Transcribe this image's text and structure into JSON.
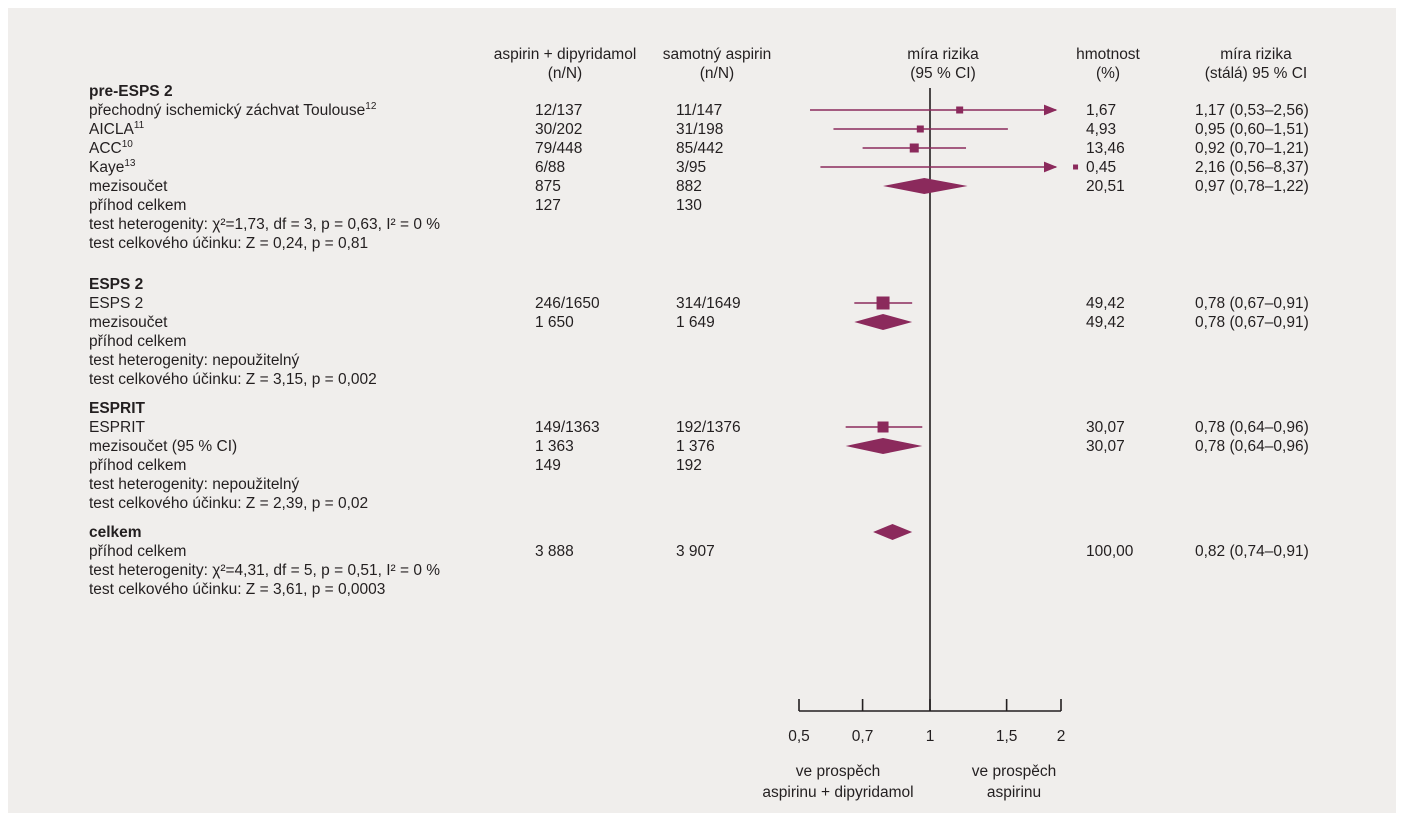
{
  "headers": {
    "col1": [
      "aspirin + dipyridamol",
      "(n/N)"
    ],
    "col2": [
      "samotný aspirin",
      "(n/N)"
    ],
    "plot": [
      "míra rizika",
      "(95 % CI)"
    ],
    "weight": [
      "hmotnost",
      "(%)"
    ],
    "rr": [
      "míra rizika",
      "(stálá) 95 % CI"
    ]
  },
  "rows": [
    {
      "kind": "section",
      "label": "pre-ESPS 2"
    },
    {
      "kind": "study",
      "label": "přechodný ischemický záchvat Toulouse",
      "sup": "12",
      "c1": "12/137",
      "c2": "11/147",
      "w": "1,67",
      "rr": "1,17 (0,53–2,56)"
    },
    {
      "kind": "study",
      "label": "AICLA",
      "sup": "11",
      "c1": "30/202",
      "c2": "31/198",
      "w": "4,93",
      "rr": "0,95 (0,60–1,51)"
    },
    {
      "kind": "study",
      "label": "ACC",
      "sup": "10",
      "c1": "79/448",
      "c2": "85/442",
      "w": "13,46",
      "rr": "0,92 (0,70–1,21)"
    },
    {
      "kind": "study",
      "label": "Kaye",
      "sup": "13",
      "c1": "6/88",
      "c2": "3/95",
      "w": "0,45",
      "rr": "2,16 (0,56–8,37)"
    },
    {
      "kind": "sub",
      "label": "mezisoučet",
      "c1": "875",
      "c2": "882",
      "w": "20,51",
      "rr": "0,97 (0,78–1,22)"
    },
    {
      "kind": "text",
      "label": "příhod celkem",
      "c1": "127",
      "c2": "130"
    },
    {
      "kind": "text",
      "label": "test heterogenity: χ²=1,73, df = 3, p = 0,63, I² = 0 %"
    },
    {
      "kind": "text",
      "label": "test celkového účinku: Z = 0,24, p = 0,81"
    },
    {
      "kind": "section",
      "label": "ESPS 2"
    },
    {
      "kind": "study",
      "label": "ESPS 2",
      "c1": "246/1650",
      "c2": "314/1649",
      "w": "49,42",
      "rr": "0,78 (0,67–0,91)"
    },
    {
      "kind": "sub",
      "label": "mezisoučet",
      "c1": "1 650",
      "c2": "1 649",
      "w": "49,42",
      "rr": "0,78 (0,67–0,91)"
    },
    {
      "kind": "text",
      "label": "příhod celkem"
    },
    {
      "kind": "text",
      "label": "test heterogenity: nepoužitelný"
    },
    {
      "kind": "text",
      "label": "test celkového účinku: Z = 3,15, p = 0,002"
    },
    {
      "kind": "section",
      "label": "ESPRIT"
    },
    {
      "kind": "study",
      "label": "ESPRIT",
      "c1": "149/1363",
      "c2": "192/1376",
      "w": "30,07",
      "rr": "0,78 (0,64–0,96)"
    },
    {
      "kind": "sub",
      "label": "mezisoučet (95 % CI)",
      "c1": "1 363",
      "c2": "1 376",
      "w": "30,07",
      "rr": "0,78 (0,64–0,96)"
    },
    {
      "kind": "text",
      "label": "příhod celkem",
      "c1": "149",
      "c2": "192"
    },
    {
      "kind": "text",
      "label": "test heterogenity: nepoužitelný"
    },
    {
      "kind": "text",
      "label": "test celkového účinku: Z = 2,39, p = 0,02"
    },
    {
      "kind": "section",
      "label": "celkem"
    },
    {
      "kind": "total",
      "label": "příhod celkem",
      "c1": "3 888",
      "c2": "3 907",
      "w": "100,00",
      "rr": "0,82 (0,74–0,91)"
    },
    {
      "kind": "text",
      "label": "test heterogenity: χ²=4,31, df = 5, p = 0,51, I² = 0 %"
    },
    {
      "kind": "text",
      "label": "test celkového účinku: Z = 3,61, p = 0,0003"
    }
  ],
  "axis_ticks": [
    "0,5",
    "0,7",
    "1",
    "1,5",
    "2"
  ],
  "favours_left": [
    "ve prospěch",
    "aspirinu + dipyridamol"
  ],
  "favours_right": [
    "ve prospěch",
    "aspirinu"
  ],
  "colors": {
    "marker": "#8b2a5c",
    "text": "#231f20",
    "background": "#f0eeec",
    "axis": "#231f20"
  },
  "chart_data": {
    "type": "forest",
    "x_scale": "log",
    "xlim": [
      0.5,
      2
    ],
    "x_ticks": [
      0.5,
      0.7,
      1,
      1.5,
      2
    ],
    "reference_line": 1,
    "studies": [
      {
        "name": "přechodný ischemický záchvat Toulouse",
        "rr": 1.17,
        "lo": 0.53,
        "hi": 2.56,
        "clipped_high": true
      },
      {
        "name": "AICLA",
        "rr": 0.95,
        "lo": 0.6,
        "hi": 1.51
      },
      {
        "name": "ACC",
        "rr": 0.92,
        "lo": 0.7,
        "hi": 1.21
      },
      {
        "name": "Kaye",
        "rr": 2.16,
        "lo": 0.56,
        "hi": 8.37,
        "clipped_high": true
      },
      {
        "name": "ESPS 2",
        "rr": 0.78,
        "lo": 0.67,
        "hi": 0.91
      },
      {
        "name": "ESPRIT",
        "rr": 0.78,
        "lo": 0.64,
        "hi": 0.96
      }
    ],
    "diamonds": [
      {
        "name": "pre-ESPS 2 mezisoučet",
        "rr": 0.97,
        "lo": 0.78,
        "hi": 1.22
      },
      {
        "name": "ESPS 2 mezisoučet",
        "rr": 0.78,
        "lo": 0.67,
        "hi": 0.91
      },
      {
        "name": "ESPRIT mezisoučet",
        "rr": 0.78,
        "lo": 0.64,
        "hi": 0.96
      },
      {
        "name": "celkem",
        "rr": 0.82,
        "lo": 0.74,
        "hi": 0.91
      }
    ]
  }
}
